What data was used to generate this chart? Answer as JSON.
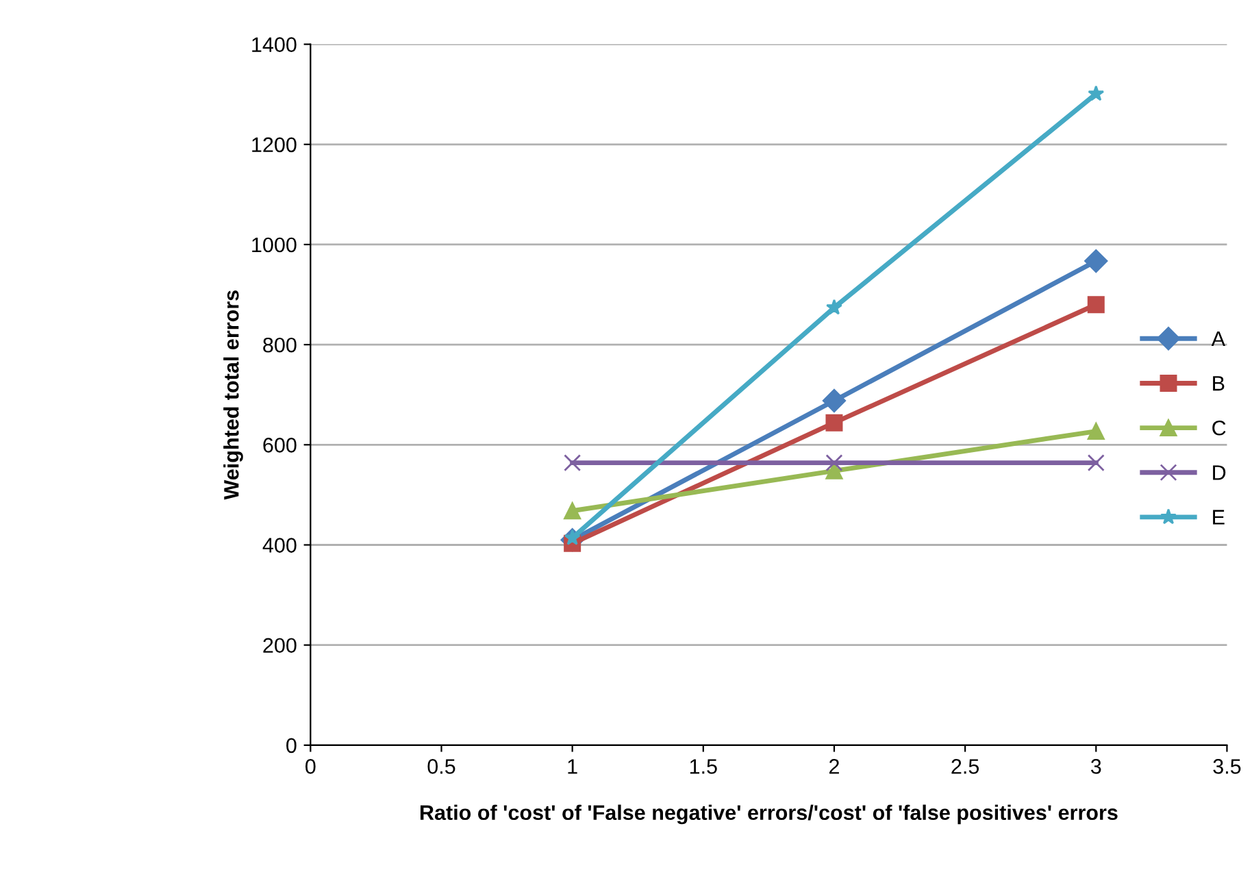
{
  "chart_data": {
    "type": "line",
    "xlabel": "Ratio of 'cost' of 'False negative' errors/'cost' of 'false positives' errors",
    "ylabel": "Weighted total errors",
    "x": [
      1,
      2,
      3
    ],
    "series": [
      {
        "name": "A",
        "color": "#4a7ebb",
        "marker": "diamond",
        "values": [
          410,
          688,
          967
        ]
      },
      {
        "name": "B",
        "color": "#be4b48",
        "marker": "square",
        "values": [
          403,
          644,
          880
        ]
      },
      {
        "name": "C",
        "color": "#98b954",
        "marker": "triangle",
        "values": [
          468,
          548,
          627
        ]
      },
      {
        "name": "D",
        "color": "#7d60a0",
        "marker": "cross",
        "values": [
          564,
          564,
          564
        ]
      },
      {
        "name": "E",
        "color": "#46aac5",
        "marker": "star",
        "values": [
          414,
          874,
          1301
        ]
      }
    ],
    "xlim": [
      0,
      3.5
    ],
    "xticks": [
      0,
      0.5,
      1,
      1.5,
      2,
      2.5,
      3,
      3.5
    ],
    "ylim": [
      0,
      1400
    ],
    "yticks": [
      0,
      200,
      400,
      600,
      800,
      1000,
      1200,
      1400
    ],
    "grid": "y",
    "legend": "right",
    "line_style": "solid"
  }
}
